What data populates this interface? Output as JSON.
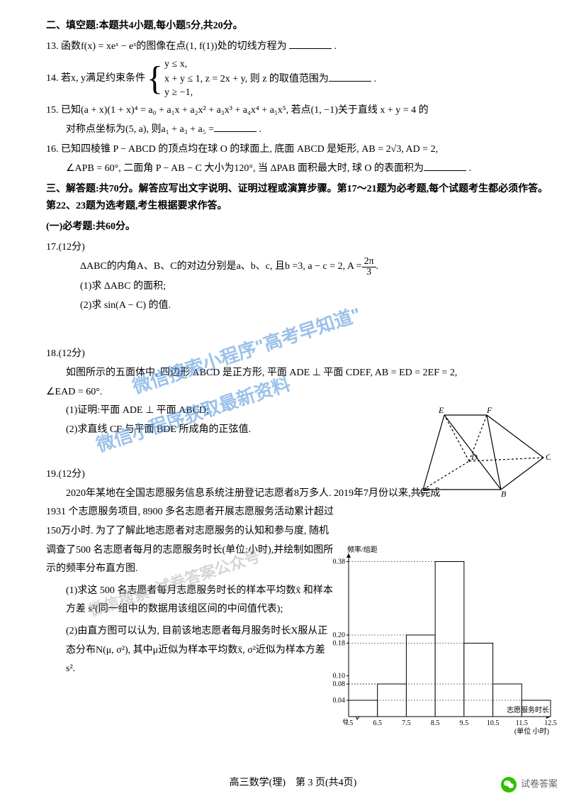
{
  "section2": {
    "title": "二、填空题:本题共4小题,每小题5分,共20分。",
    "q13": "13. 函数f(x) = xeˣ − eˣ的图像在点(1, f(1))处的切线方程为",
    "q14_pre": "14. 若x, y满足约束条件",
    "q14_c1": "y ≤ x,",
    "q14_c2": "x + y ≤ 1,  z = 2x + y, 则 z 的取值范围为",
    "q14_c3": "y ≥ −1,",
    "q15": "15. 已知(a + x)(1 + x)⁴ = a₀ + a₁x + a₂x² + a₃x³ + a₄x⁴ + a₅x⁵, 若点(1, −1)关于直线 x + y = 4 的",
    "q15b": "对称点坐标为(5, a), 则a₁ + a₃ + a₅ =",
    "q16a": "16. 已知四棱锥 P − ABCD 的顶点均在球 O 的球面上, 底面 ABCD 是矩形, AB = 2√3, AD = 2,",
    "q16b": "∠APB = 60°, 二面角 P − AB − C 大小为120°, 当 ΔPAB 面积最大时, 球 O 的表面积为"
  },
  "section3": {
    "title": "三、解答题:共70分。解答应写出文字说明、证明过程或演算步骤。第17～21题为必考题,每个试题考生都必须作答。第22、23题为选考题,考生根据要求作答。",
    "sub1": "(一)必考题:共60分。",
    "q17_num": "17.(12分)",
    "q17_body_pre": "ΔABC的内角A、B、C的对边分别是a、b、c, 且b =3, a − c = 2, A = ",
    "q17_frac_num": "2π",
    "q17_frac_den": "3",
    "q17_1": "(1)求 ΔABC 的面积;",
    "q17_2": "(2)求 sin(A − C) 的值.",
    "q18_num": "18.(12分)",
    "q18_body1": "如图所示的五面体中, 四边形 ABCD 是正方形, 平面 ADE ⊥ 平面 CDEF, AB = ED = 2EF = 2,",
    "q18_body2": "∠EAD = 60°.",
    "q18_1": "(1)证明:平面 ADE ⊥ 平面 ABCD;",
    "q18_2": "(2)求直线 CF 与平面 BDE 所成角的正弦值.",
    "q19_num": "19.(12分)",
    "q19_p1": "2020年某地在全国志愿服务信息系统注册登记志愿者8万多人. 2019年7月份以来,共完成",
    "q19_p2": "1931 个志愿服务项目, 8900 多名志愿者开展志愿服务活动累计超过150万小时. 为了了解此地志愿者对志愿服务的认知和参与度, 随机调查了500 名志愿者每月的志愿服务时长(单位:小时),并绘制如图所示的频率分布直方图.",
    "q19_1": "(1)求这 500 名志愿者每月志愿服务时长的样本平均数x̄ 和样本方差 s²(同一组中的数据用该组区间的中间值代表);",
    "q19_2": "(2)由直方图可以认为, 目前该地志愿者每月服务时长X服从正态分布N(μ, σ²), 其中μ近似为样本平均数x̄, σ²近似为样本方差 s².",
    "footer": "高三数学(理)　第 3 页(共4页)",
    "footer_right": "试卷答案"
  },
  "histogram": {
    "ylabel": "频率/组距",
    "xlabel": "志愿服务时长",
    "xunit": "(单位 小时)",
    "ylim": [
      0,
      0.4
    ],
    "yticks": [
      0.04,
      0.08,
      0.1,
      0.18,
      0.2,
      0.38
    ],
    "xticks": [
      5.5,
      6.5,
      7.5,
      8.5,
      9.5,
      10.5,
      11.5,
      12.5
    ],
    "bars": [
      {
        "x": 5.5,
        "h": 0.04
      },
      {
        "x": 6.5,
        "h": 0.08
      },
      {
        "x": 7.5,
        "h": 0.2
      },
      {
        "x": 8.5,
        "h": 0.38
      },
      {
        "x": 9.5,
        "h": 0.18
      },
      {
        "x": 10.5,
        "h": 0.08
      },
      {
        "x": 11.5,
        "h": 0.04
      }
    ],
    "bar_fill": "#ffffff",
    "bar_stroke": "#000000",
    "axis_color": "#000000",
    "font_size": 10
  },
  "geometry": {
    "labels": [
      "A",
      "B",
      "C",
      "D",
      "E",
      "F"
    ],
    "stroke": "#000000"
  },
  "watermarks": {
    "w1a": "微信搜索小程序\"高考早知道\"",
    "w1b": "微信小程序获取最新资料",
    "w2": "微信搜索\"试卷答案公众号\""
  }
}
